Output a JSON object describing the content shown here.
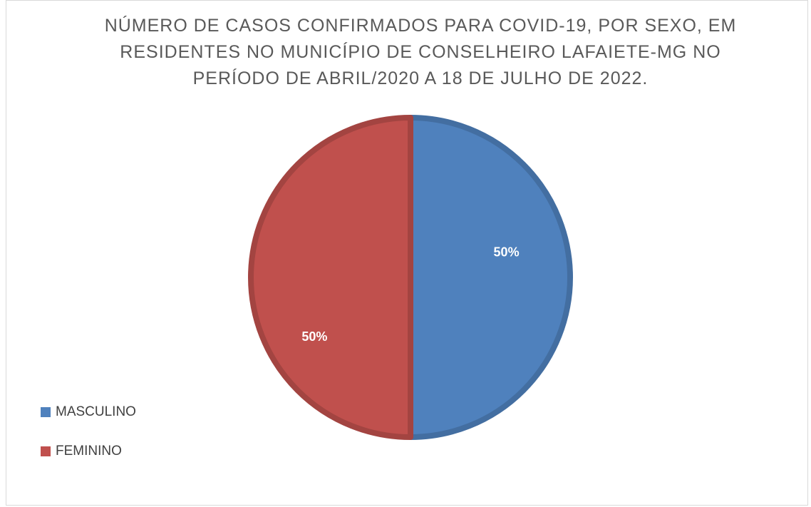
{
  "chart_data": {
    "type": "pie",
    "title": "NÚMERO DE CASOS CONFIRMADOS PARA COVID-19, POR SEXO, EM RESIDENTES NO MUNICÍPIO DE CONSELHEIRO LAFAIETE-MG NO PERÍODO DE ABRIL/2020 A 18 DE JULHO DE 2022.",
    "categories": [
      "MASCULINO",
      "FEMININO"
    ],
    "values": [
      50,
      50
    ],
    "value_labels": [
      "50%",
      "50%"
    ],
    "colors": [
      "#4f81bd",
      "#c0504d"
    ],
    "legend": "left"
  }
}
